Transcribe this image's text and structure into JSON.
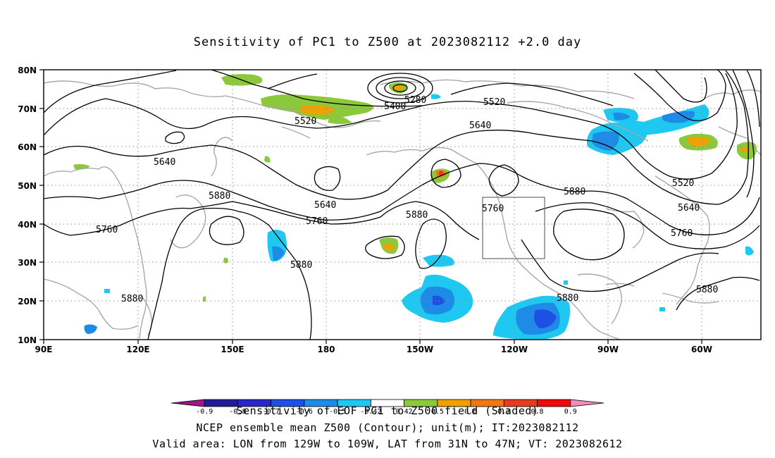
{
  "title": "Sensitivity of PC1 to Z500 at 2023082112 +2.0 day",
  "axes": {
    "lat_labels": [
      "80N",
      "70N",
      "60N",
      "50N",
      "40N",
      "30N",
      "20N",
      "10N"
    ],
    "lon_labels": [
      "90E",
      "120E",
      "150E",
      "180",
      "150W",
      "120W",
      "90W",
      "60W"
    ]
  },
  "contour_labels": [
    "5280",
    "5400",
    "5520",
    "5520",
    "5640",
    "5640",
    "5640",
    "5760",
    "5760",
    "5760",
    "5880",
    "5880",
    "5880",
    "5880",
    "5880",
    "5520",
    "5640",
    "5760",
    "5880",
    "5880"
  ],
  "colorbar": {
    "title": "Sensitivity of EOF PC1 to Z500 field (Shaded)",
    "tick_labels": [
      "-0.9",
      "-0.8",
      "-0.7",
      "-0.6",
      "-0.5",
      "-0.42",
      "0.42",
      "0.5",
      "0.6",
      "0.7",
      "0.8",
      "0.9"
    ],
    "colors": [
      "#a0148c",
      "#1e1e96",
      "#2828c8",
      "#1e50e6",
      "#1e8ce6",
      "#1ec8f0",
      "#ffffff",
      "#8cc83c",
      "#f0a000",
      "#f07814",
      "#e63c1e",
      "#f00a0a",
      "#f08cbe"
    ]
  },
  "captions": {
    "line1": "NCEP ensemble mean Z500 (Contour); unit(m); IT:2023082112",
    "line2": "Valid area: LON from 129W to 109W, LAT from 31N to 47N; VT: 2023082612"
  },
  "valid_box": {
    "lon_from": "129W",
    "lon_to": "109W",
    "lat_from": "31N",
    "lat_to": "47N"
  }
}
